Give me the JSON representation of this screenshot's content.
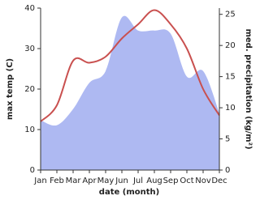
{
  "chart_data": {
    "type": "line",
    "x_label": "date (month)",
    "y_label": "max temp (C)",
    "y2_label": "med. precipitation (kg/m²)",
    "categories": [
      "Jan",
      "Feb",
      "Mar",
      "Apr",
      "May",
      "Jun",
      "Jul",
      "Aug",
      "Sep",
      "Oct",
      "Nov",
      "Dec"
    ],
    "ylim": [
      0,
      40
    ],
    "yticks": [
      0,
      10,
      20,
      30,
      40
    ],
    "y2lim": [
      0,
      26
    ],
    "y2ticks": [
      0,
      5,
      10,
      15,
      20,
      25
    ],
    "series": [
      {
        "name": "med. precipitation",
        "kind": "area",
        "axis": "y2",
        "color": "#aeb9f2",
        "values": [
          8,
          7.2,
          9.8,
          14,
          15.9,
          24.5,
          22.4,
          22.4,
          21.9,
          15,
          15.9,
          9.1
        ]
      },
      {
        "name": "max temp",
        "kind": "line",
        "color": "#c9504f",
        "values": [
          12,
          16,
          27,
          26.5,
          28,
          32.5,
          36,
          39.5,
          36,
          30,
          20,
          13.5
        ]
      }
    ]
  }
}
